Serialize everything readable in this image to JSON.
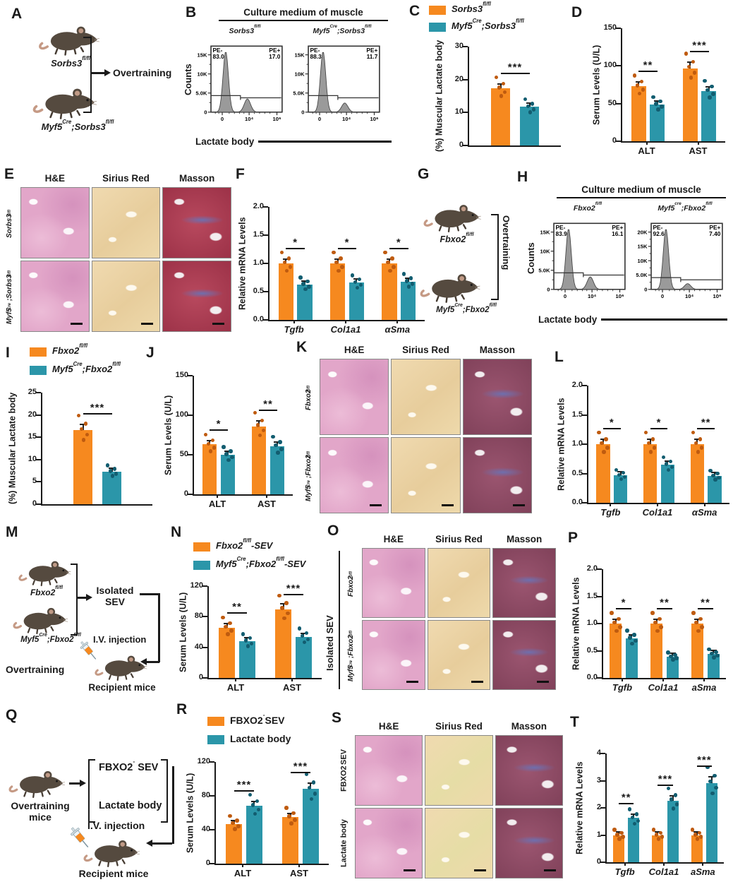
{
  "colors": {
    "orange": "#F6891F",
    "teal": "#2B96A9",
    "orange_dot": "#bf5b0f",
    "teal_dot": "#125d70",
    "axis": "#1a1a1a"
  },
  "panels": {
    "A": {
      "letter": "A",
      "mice": [
        "Sorbs3^{fl/fl}",
        "Myf5^{Cre};Sorbs3^{fl/fl}"
      ],
      "label": "Overtraining"
    },
    "B": {
      "letter": "B",
      "title": "Culture medium of muscle",
      "ylabel": "Counts",
      "xlabel": "Lactate body"
    },
    "C": {
      "letter": "C",
      "legend": [
        "Sorbs3^{fl/fl}",
        "Myf5^{Cre};Sorbs3^{fl/fl}"
      ]
    },
    "D": {
      "letter": "D"
    },
    "E": {
      "letter": "E",
      "cols": [
        "H&E",
        "Sirius Red",
        "Masson"
      ],
      "rows": [
        "Sorbs3^{fl/fl}",
        "Myf5^{Cre};Sorbs3^{fl/fl}"
      ],
      "masson": "red",
      "italicRows": true
    },
    "F": {
      "letter": "F"
    },
    "G": {
      "letter": "G",
      "mice": [
        "Fbxo2^{fl/fl}",
        "Myf5^{Cre};Fbxo2^{fl/fl}"
      ],
      "label": "Overtraining"
    },
    "H": {
      "letter": "H",
      "title": "Culture medium of muscle",
      "ylabel": "Counts",
      "xlabel": "Lactate body"
    },
    "I": {
      "letter": "I",
      "legend": [
        "Fbxo2^{fl/fl}",
        "Myf5^{Cre};Fbxo2^{fl/fl}"
      ]
    },
    "J": {
      "letter": "J"
    },
    "K": {
      "letter": "K",
      "cols": [
        "H&E",
        "Sirius Red",
        "Masson"
      ],
      "rows": [
        "Fbxo2^{fl/fl}",
        "Myf5^{Cre};Fbxo2^{fl/fl}"
      ],
      "masson": "purple",
      "italicRows": true
    },
    "L": {
      "letter": "L"
    },
    "M": {
      "letter": "M",
      "mice": [
        "Fbxo2^{fl/fl}",
        "Myf5^{Cre};Fbxo2^{fl/fl}"
      ],
      "sev": "Isolated SEV",
      "iv": "I.V. injection",
      "recipient": "Recipient mice",
      "overtraining": "Overtraining"
    },
    "N": {
      "letter": "N",
      "legend": [
        "Fbxo2^{fl/fl}-SEV",
        "Myf5^{Cre};Fbxo2^{fl/fl}-SEV"
      ]
    },
    "O": {
      "letter": "O",
      "side": "Isolated SEV",
      "cols": [
        "H&E",
        "Sirius Red",
        "Masson"
      ],
      "rows": [
        "Fbxo2^{fl/fl}",
        "Myf5^{Cre};Fbxo2^{fl/fl}"
      ],
      "masson": "purple",
      "italicRows": true
    },
    "P": {
      "letter": "P"
    },
    "Q": {
      "letter": "Q",
      "mouse": "Overtraining mice",
      "options": [
        "FBXO2^{-} SEV",
        "Lactate body"
      ],
      "iv": "I.V. injection",
      "recipient": "Recipient mice"
    },
    "R": {
      "letter": "R",
      "legend": [
        "FBXO2^{-}SEV",
        "Lactate body"
      ]
    },
    "S": {
      "letter": "S",
      "cols": [
        "H&E",
        "Sirius Red",
        "Masson"
      ],
      "rows": [
        "FBXO2^{-} SEV",
        "Lactate body"
      ],
      "masson": "purple",
      "sirius": "yellow",
      "italicRows": false
    },
    "T": {
      "letter": "T"
    }
  },
  "chart_data": [
    {
      "panel": "B",
      "type": "flow-histogram",
      "title": "Culture medium of muscle",
      "xlabel": "Lactate body",
      "ylabel": "Counts",
      "plots": [
        {
          "name": "Sorbs3^{fl/fl}",
          "pe_neg_label": "PE-",
          "pe_neg": "83.0",
          "pe_pos_label": "PE+",
          "pe_pos": "17.0",
          "yticks": [
            "15K",
            "10K",
            "5.0K",
            "0"
          ],
          "xticks": [
            "0",
            "10⁴",
            "10⁶"
          ]
        },
        {
          "name": "Myf5^{Cre};Sorbs3^{fl/fl}",
          "pe_neg_label": "PE-",
          "pe_neg": "88.3",
          "pe_pos_label": "PE+",
          "pe_pos": "11.7",
          "yticks": [
            "15K",
            "10K",
            "5.0K",
            "0"
          ],
          "xticks": [
            "0",
            "10⁴",
            "10⁶"
          ]
        }
      ]
    },
    {
      "panel": "H",
      "type": "flow-histogram",
      "title": "Culture medium of muscle",
      "xlabel": "Lactate body",
      "ylabel": "Counts",
      "plots": [
        {
          "name": "Fbxo2^{fl/fl}",
          "pe_neg_label": "PE-",
          "pe_neg": "83.9",
          "pe_pos_label": "PE+",
          "pe_pos": "16.1",
          "yticks": [
            "15K",
            "10K",
            "5.0K",
            "0"
          ],
          "xticks": [
            "0",
            "10⁴",
            "10⁶"
          ]
        },
        {
          "name": "Myf5^{cre};Fbxo2^{fl/fl}",
          "pe_neg_label": "PE-",
          "pe_neg": "92.6",
          "pe_pos_label": "PE+",
          "pe_pos": "7.40",
          "yticks": [
            "20K",
            "15K",
            "10K",
            "5.0K",
            "0"
          ],
          "xticks": [
            "0",
            "10⁴",
            "10⁶"
          ]
        }
      ]
    },
    {
      "panel": "C",
      "type": "bar",
      "ylabel": "(%) Muscular Lactate body",
      "ylim": [
        0,
        30
      ],
      "yticks": [
        "0",
        "10",
        "20",
        "30"
      ],
      "mleft": 48,
      "categories": [
        ""
      ],
      "series": [
        {
          "name": "Sorbs3 fl/fl",
          "color": "orange",
          "values": [
            17.3
          ]
        },
        {
          "name": "Myf5Cre;Sorbs3 fl/fl",
          "color": "teal",
          "values": [
            11.7
          ]
        }
      ],
      "sig": [
        "***"
      ]
    },
    {
      "panel": "D",
      "type": "bar",
      "ylabel": "Serum Levels (U/L)",
      "ylim": [
        0,
        150
      ],
      "yticks": [
        "0",
        "50",
        "100",
        "150"
      ],
      "mleft": 42,
      "categories": [
        "ALT",
        "AST"
      ],
      "series": [
        {
          "name": "Sorbs3 fl/fl",
          "color": "orange",
          "values": [
            73,
            97
          ]
        },
        {
          "name": "Myf5Cre;Sorbs3 fl/fl",
          "color": "teal",
          "values": [
            49,
            67
          ]
        }
      ],
      "sig": [
        "**",
        "***"
      ]
    },
    {
      "panel": "F",
      "type": "bar",
      "ylabel": "Relative mRNA Levels",
      "ylim": [
        0,
        2
      ],
      "yticks": [
        "0.0",
        "0.5",
        "1.0",
        "1.5",
        "2.0"
      ],
      "mleft": 44,
      "cat_italic": true,
      "categories": [
        "Tgfb",
        "Col1a1",
        "αSma"
      ],
      "series": [
        {
          "name": "Sorbs3 fl/fl",
          "color": "orange",
          "values": [
            1.0,
            1.0,
            1.0
          ]
        },
        {
          "name": "Myf5Cre;Sorbs3 fl/fl",
          "color": "teal",
          "values": [
            0.63,
            0.66,
            0.68
          ]
        }
      ],
      "sig": [
        "*",
        "*",
        "*"
      ]
    },
    {
      "panel": "I",
      "type": "bar",
      "ylabel": "(%) Muscular Lactate body",
      "ylim": [
        0,
        25
      ],
      "yticks": [
        "0",
        "5",
        "10",
        "15",
        "20",
        "25"
      ],
      "mleft": 48,
      "categories": [
        ""
      ],
      "series": [
        {
          "name": "Fbxo2 fl/fl",
          "color": "orange",
          "values": [
            16.6
          ]
        },
        {
          "name": "Myf5Cre;Fbxo2 fl/fl",
          "color": "teal",
          "values": [
            7.3
          ]
        }
      ],
      "sig": [
        "***"
      ]
    },
    {
      "panel": "J",
      "type": "bar",
      "ylabel": "Serum Levels (U/L)",
      "ylim": [
        0,
        150
      ],
      "yticks": [
        "0",
        "50",
        "100",
        "150"
      ],
      "mleft": 42,
      "categories": [
        "ALT",
        "AST"
      ],
      "series": [
        {
          "name": "Fbxo2 fl/fl",
          "color": "orange",
          "values": [
            63,
            86
          ]
        },
        {
          "name": "Myf5Cre;Fbxo2 fl/fl",
          "color": "teal",
          "values": [
            50,
            61
          ]
        }
      ],
      "sig": [
        "*",
        "**"
      ]
    },
    {
      "panel": "L",
      "type": "bar",
      "ylabel": "Relative mRNA Levels",
      "ylim": [
        0,
        2
      ],
      "yticks": [
        "0.0",
        "0.5",
        "1.0",
        "1.5",
        "2.0"
      ],
      "mleft": 44,
      "cat_italic": true,
      "categories": [
        "Tgfb",
        "Col1a1",
        "αSma"
      ],
      "series": [
        {
          "name": "Fbxo2 fl/fl",
          "color": "orange",
          "values": [
            1.0,
            1.0,
            1.0
          ]
        },
        {
          "name": "Myf5Cre;Fbxo2 fl/fl",
          "color": "teal",
          "values": [
            0.47,
            0.65,
            0.46
          ]
        }
      ],
      "sig": [
        "*",
        "*",
        "**"
      ]
    },
    {
      "panel": "N",
      "type": "bar",
      "ylabel": "Serum Levels (U/L)",
      "ylim": [
        0,
        120
      ],
      "yticks": [
        "0",
        "40",
        "80",
        "120"
      ],
      "mleft": 42,
      "categories": [
        "ALT",
        "AST"
      ],
      "series": [
        {
          "name": "Fbxo2 fl/fl-SEV",
          "color": "orange",
          "values": [
            66,
            90
          ]
        },
        {
          "name": "Myf5Cre;Fbxo2 fl/fl-SEV",
          "color": "teal",
          "values": [
            48,
            54
          ]
        }
      ],
      "sig": [
        "**",
        "***"
      ]
    },
    {
      "panel": "P",
      "type": "bar",
      "ylabel": "Relative mRNA Levels",
      "ylim": [
        0,
        2
      ],
      "yticks": [
        "0.0",
        "0.5",
        "1.0",
        "1.5",
        "2.0"
      ],
      "mleft": 44,
      "cat_italic": true,
      "categories": [
        "Tgfb",
        "Col1a1",
        "aSma"
      ],
      "series": [
        {
          "name": "Fbxo2 fl/fl-SEV",
          "color": "orange",
          "values": [
            1.0,
            1.0,
            1.0
          ]
        },
        {
          "name": "Myf5Cre;Fbxo2 fl/fl-SEV",
          "color": "teal",
          "values": [
            0.73,
            0.39,
            0.44
          ]
        }
      ],
      "sig": [
        "*",
        "**",
        "**"
      ]
    },
    {
      "panel": "R",
      "type": "bar",
      "ylabel": "Serum Levels (U/L)",
      "ylim": [
        0,
        120
      ],
      "yticks": [
        "0",
        "40",
        "80",
        "120"
      ],
      "mleft": 42,
      "categories": [
        "ALT",
        "AST"
      ],
      "series": [
        {
          "name": "FBXO2-SEV",
          "color": "orange",
          "values": [
            47,
            55
          ]
        },
        {
          "name": "Lactate body",
          "color": "teal",
          "values": [
            68,
            88
          ]
        }
      ],
      "sig": [
        "***",
        "***"
      ]
    },
    {
      "panel": "T",
      "type": "bar",
      "ylabel": "Relative mRNA Levels",
      "ylim": [
        0,
        4
      ],
      "yticks": [
        "0",
        "1",
        "2",
        "3",
        "4"
      ],
      "mleft": 44,
      "cat_italic": true,
      "categories": [
        "Tgfb",
        "Col1a1",
        "aSma"
      ],
      "series": [
        {
          "name": "FBXO2-SEV",
          "color": "orange",
          "values": [
            1.0,
            1.0,
            1.0
          ]
        },
        {
          "name": "Lactate body",
          "color": "teal",
          "values": [
            1.63,
            2.27,
            2.92
          ]
        }
      ],
      "sig": [
        "**",
        "***",
        "***"
      ]
    }
  ]
}
